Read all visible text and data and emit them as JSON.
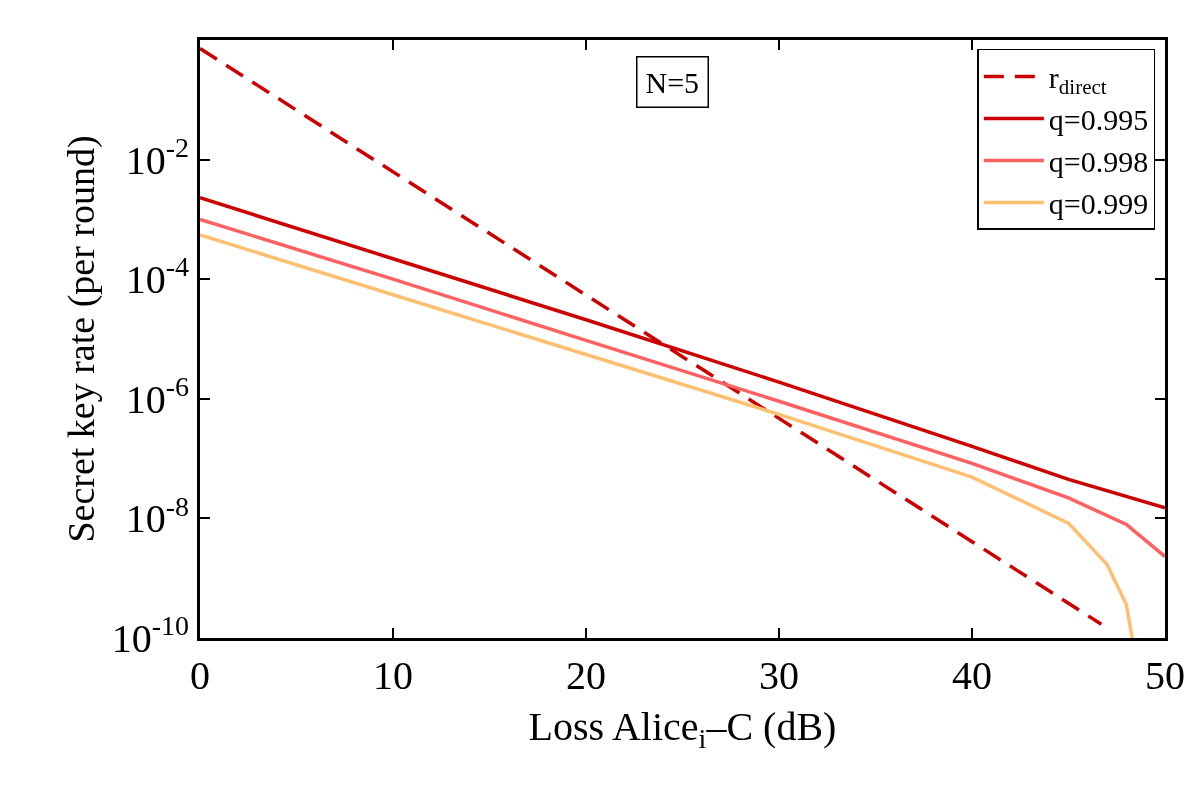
{
  "chart_data": {
    "type": "line",
    "xlabel": "Loss Alice$_{i}$–C (dB)",
    "ylabel": "Secret key rate (per round)",
    "log": "y",
    "legend": "top right",
    "marker": "none",
    "xlim": [
      0,
      50
    ],
    "xticks": [
      0,
      10,
      20,
      30,
      40,
      50
    ],
    "ylim": [
      1e-10,
      1
    ],
    "yticks": [
      {
        "value": 0.01,
        "label": "10$^{-2}$"
      },
      {
        "value": 0.0001,
        "label": "10$^{-4}$"
      },
      {
        "value": 1e-06,
        "label": "10$^{-6}$"
      },
      {
        "value": 1e-08,
        "label": "10$^{-8}$"
      },
      {
        "value": 1e-10,
        "label": "10$^{-10}$"
      }
    ],
    "annotations": [
      "N=5"
    ],
    "series": [
      {
        "name": "r$_{direct}$",
        "color": "#cc0000",
        "line_style": "dashed",
        "x": [
          0,
          46.7
        ],
        "values": [
          0.72,
          1.7e-10
        ]
      },
      {
        "name": "q=0.995",
        "color": "#cc0000",
        "line_style": "solid",
        "x": [
          0,
          10,
          20,
          30,
          40,
          45,
          50
        ],
        "values": [
          0.0023,
          0.00022,
          2.1e-05,
          1.9e-06,
          1.6e-07,
          4.5e-08,
          1.5e-08
        ]
      },
      {
        "name": "q=0.998",
        "color": "#ff6060",
        "line_style": "solid",
        "x": [
          0,
          10,
          20,
          30,
          40,
          45,
          48,
          50
        ],
        "values": [
          0.001,
          0.0001,
          9.5e-06,
          9.1e-07,
          8.3e-08,
          2.2e-08,
          7.9e-09,
          2.3e-09
        ]
      },
      {
        "name": "q=0.999",
        "color": "#ffbf70",
        "line_style": "solid",
        "x": [
          0,
          10,
          20,
          30,
          40,
          45,
          47,
          48,
          48.3
        ],
        "values": [
          0.00055,
          5.5e-05,
          5.5e-06,
          5.5e-07,
          4.9e-08,
          8.3e-09,
          1.7e-09,
          3.6e-10,
          1e-10
        ]
      }
    ]
  }
}
